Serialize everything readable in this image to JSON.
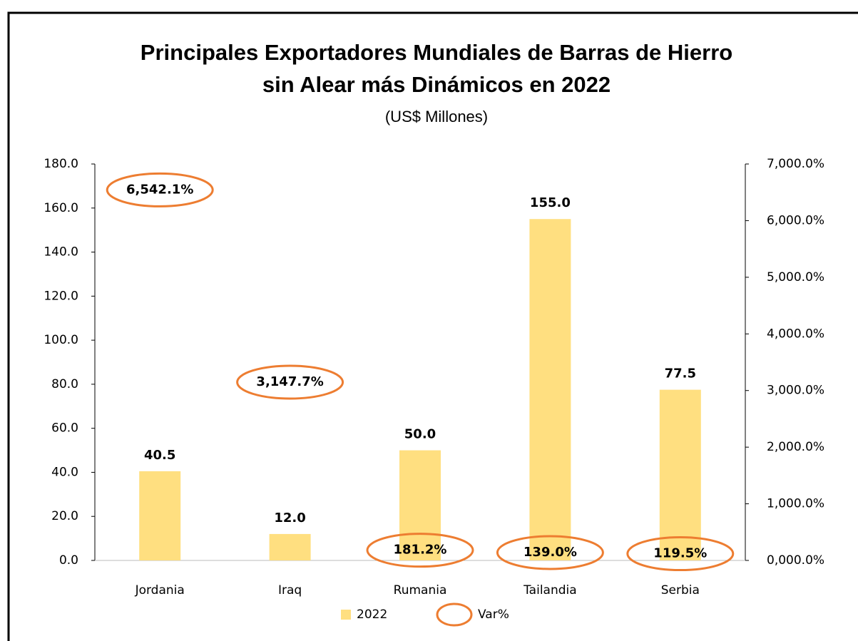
{
  "chart_data": {
    "type": "bar-line",
    "title": [
      "Principales Exportadores Mundiales de Barras de Hierro",
      "sin Alear más Dinámicos en 2022"
    ],
    "subtitle": "(US$ Millones)",
    "categories": [
      "Jordania",
      "Iraq",
      "Rumania",
      "Tailandia",
      "Serbia"
    ],
    "series": [
      {
        "name": "2022",
        "color": "#ffdf80",
        "values": [
          40.5,
          12.0,
          50.0,
          155.0,
          77.5
        ],
        "value_labels": [
          "40.5",
          "12.0",
          "50.0",
          "155.0",
          "77.5"
        ]
      },
      {
        "name": "Var%",
        "color": "#ed7d31",
        "axis": "y2",
        "values": [
          6542.1,
          3147.7,
          181.2,
          139.0,
          119.5
        ],
        "value_labels": [
          "6,542.1%",
          "3,147.7%",
          "181.2%",
          "139.0%",
          "119.5%"
        ]
      }
    ],
    "ylim": [
      0,
      180
    ],
    "yticks": [
      {
        "value": 0,
        "label": "0.0"
      },
      {
        "value": 20,
        "label": "20.0"
      },
      {
        "value": 40,
        "label": "40.0"
      },
      {
        "value": 60,
        "label": "60.0"
      },
      {
        "value": 80,
        "label": "80.0"
      },
      {
        "value": 100,
        "label": "100.0"
      },
      {
        "value": 120,
        "label": "120.0"
      },
      {
        "value": 140,
        "label": "140.0"
      },
      {
        "value": 160,
        "label": "160.0"
      },
      {
        "value": 180,
        "label": "180.0"
      }
    ],
    "y2lim": [
      0,
      7000
    ],
    "y2ticks": [
      {
        "value": 0,
        "label": "0,000.0%"
      },
      {
        "value": 1000,
        "label": "1,000.0%"
      },
      {
        "value": 2000,
        "label": "2,000.0%"
      },
      {
        "value": 3000,
        "label": "3,000.0%"
      },
      {
        "value": 4000,
        "label": "4,000.0%"
      },
      {
        "value": 5000,
        "label": "5,000.0%"
      },
      {
        "value": 6000,
        "label": "6,000.0%"
      },
      {
        "value": 7000,
        "label": "7,000.0%"
      }
    ],
    "legend": "bottom"
  }
}
